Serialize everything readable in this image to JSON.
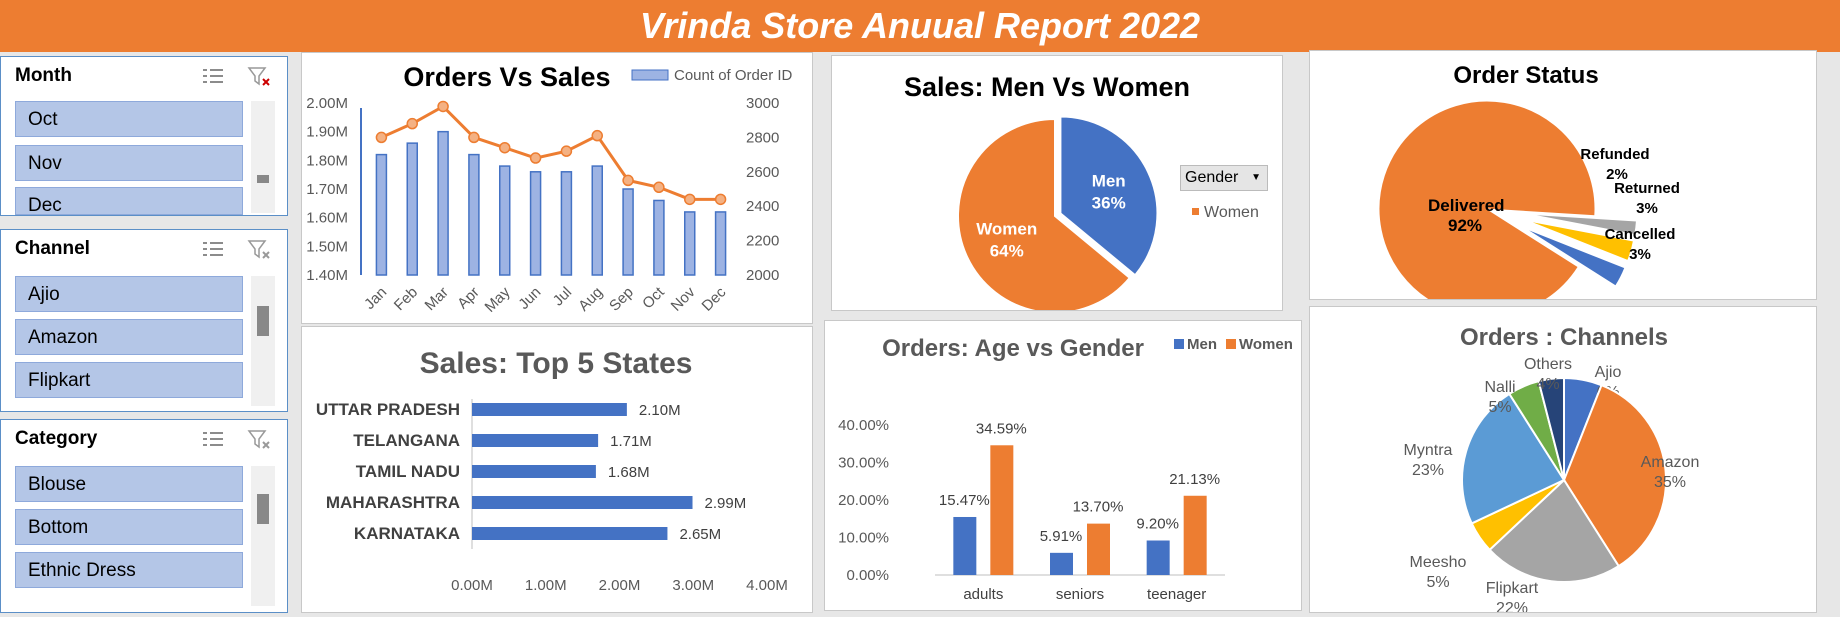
{
  "report_title": "Vrinda Store Anuual Report 2022",
  "slicers": [
    {
      "title": "Month",
      "items": [
        "Oct",
        "Nov",
        "Dec"
      ]
    },
    {
      "title": "Channel",
      "items": [
        "Ajio",
        "Amazon",
        "Flipkart"
      ]
    },
    {
      "title": "Category",
      "items": [
        "Blouse",
        "Bottom",
        "Ethnic Dress"
      ]
    }
  ],
  "colors": {
    "orange": "#ed7d31",
    "blue": "#4472c4",
    "gray": "#a5a5a5",
    "yellow": "#ffc000",
    "lightblue": "#5b9bd5",
    "green": "#70ad47",
    "navy": "#264478"
  },
  "gender_filter": {
    "label": "Gender",
    "icon": "dropdown-arrow-icon"
  },
  "chart_data": [
    {
      "id": "orders_vs_sales",
      "type": "bar",
      "title": "Orders Vs Sales",
      "categories": [
        "Jan",
        "Feb",
        "Mar",
        "Apr",
        "May",
        "Jun",
        "Jul",
        "Aug",
        "Sep",
        "Oct",
        "Nov",
        "Dec"
      ],
      "series": [
        {
          "name": "Count of Order ID",
          "values": [
            1.82,
            1.86,
            1.9,
            1.82,
            1.78,
            1.76,
            1.76,
            1.78,
            1.7,
            1.66,
            1.62,
            1.62
          ]
        },
        {
          "values": [
            2800,
            2880,
            2980,
            2800,
            2740,
            2680,
            2720,
            2810,
            2550,
            2510,
            2440,
            2440
          ]
        }
      ],
      "y_ticks": [
        "2.00M",
        "1.90M",
        "1.80M",
        "1.70M",
        "1.60M",
        "1.50M",
        "1.40M"
      ],
      "y2_ticks": [
        "3000",
        "2800",
        "2600",
        "2400",
        "2200",
        "2000"
      ],
      "ylim": [
        1.4,
        2.0
      ],
      "y2lim": [
        2000,
        3000
      ]
    },
    {
      "id": "sales_men_women",
      "type": "pie",
      "title": "Sales:  Men  Vs  Women",
      "slices": [
        {
          "label": "Men",
          "pct": "36%",
          "value": 36,
          "color": "#4472c4"
        },
        {
          "label": "Women",
          "pct": "64%",
          "value": 64,
          "color": "#ed7d31"
        }
      ],
      "legend": [
        "Men",
        "Women"
      ]
    },
    {
      "id": "order_status",
      "type": "pie",
      "title": "Order Status",
      "slices": [
        {
          "label": "Delivered",
          "pct": "92%",
          "value": 92,
          "color": "#ed7d31"
        },
        {
          "label": "Refunded",
          "pct": "2%",
          "value": 2,
          "color": "#a5a5a5"
        },
        {
          "label": "Returned",
          "pct": "3%",
          "value": 3,
          "color": "#ffc000"
        },
        {
          "label": "Cancelled",
          "pct": "3%",
          "value": 3,
          "color": "#4472c4"
        }
      ]
    },
    {
      "id": "top_states",
      "type": "bar",
      "title": "Sales: Top 5 States",
      "categories": [
        "UTTAR PRADESH",
        "TELANGANA",
        "TAMIL NADU",
        "MAHARASHTRA",
        "KARNATAKA"
      ],
      "values": [
        2.1,
        1.71,
        1.68,
        2.99,
        2.65
      ],
      "value_labels": [
        "2.10M",
        "1.71M",
        "1.68M",
        "2.99M",
        "2.65M"
      ],
      "x_ticks": [
        "0.00M",
        "1.00M",
        "2.00M",
        "3.00M",
        "4.00M"
      ],
      "xlim": [
        0,
        4
      ]
    },
    {
      "id": "age_vs_gender",
      "type": "bar",
      "title": "Orders: Age vs Gender",
      "categories": [
        "adults",
        "seniors",
        "teenager"
      ],
      "series": [
        {
          "name": "Men",
          "values": [
            15.47,
            5.91,
            9.2
          ],
          "labels": [
            "15.47%",
            "5.91%",
            "9.20%"
          ]
        },
        {
          "name": "Women",
          "values": [
            34.59,
            13.7,
            21.13
          ],
          "labels": [
            "34.59%",
            "13.70%",
            "21.13%"
          ]
        }
      ],
      "y_ticks": [
        "40.00%",
        "30.00%",
        "20.00%",
        "10.00%",
        "0.00%"
      ],
      "ylim": [
        0,
        40
      ]
    },
    {
      "id": "orders_channels",
      "type": "pie",
      "title": "Orders : Channels",
      "slices": [
        {
          "label": "Ajio",
          "pct": "6%",
          "value": 6,
          "color": "#4472c4"
        },
        {
          "label": "Amazon",
          "pct": "35%",
          "value": 35,
          "color": "#ed7d31"
        },
        {
          "label": "Flipkart",
          "pct": "22%",
          "value": 22,
          "color": "#a5a5a5"
        },
        {
          "label": "Meesho",
          "pct": "5%",
          "value": 5,
          "color": "#ffc000"
        },
        {
          "label": "Myntra",
          "pct": "23%",
          "value": 23,
          "color": "#5b9bd5"
        },
        {
          "label": "Nalli",
          "pct": "5%",
          "value": 5,
          "color": "#70ad47"
        },
        {
          "label": "Others",
          "pct": "4%",
          "value": 4,
          "color": "#264478"
        }
      ]
    }
  ]
}
